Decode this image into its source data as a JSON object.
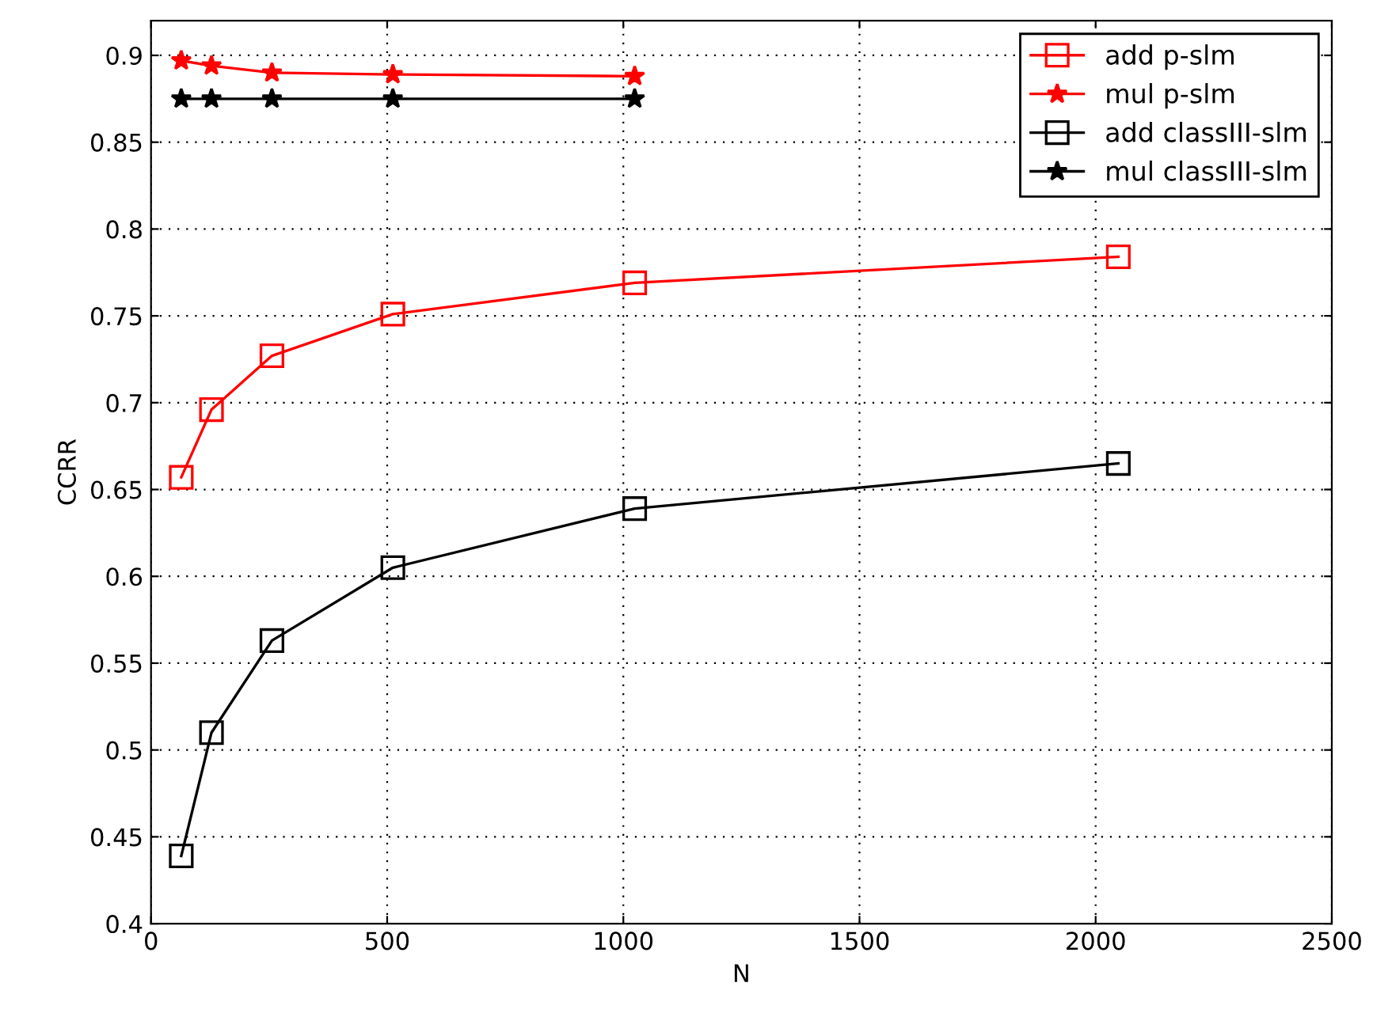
{
  "chart_data": {
    "type": "line",
    "xlabel": "N",
    "ylabel": "CCRR",
    "x": [
      64,
      128,
      256,
      512,
      1024,
      2048
    ],
    "series": [
      {
        "name": "add p-slm",
        "color": "#ff0000",
        "marker": "square",
        "values": [
          0.657,
          0.696,
          0.727,
          0.751,
          0.769,
          0.784
        ]
      },
      {
        "name": "mul p-slm",
        "color": "#ff0000",
        "marker": "star",
        "values": [
          0.897,
          0.894,
          0.89,
          0.889,
          0.888,
          null
        ]
      },
      {
        "name": "add classIII-slm",
        "color": "#000000",
        "marker": "square",
        "values": [
          0.439,
          0.51,
          0.563,
          0.605,
          0.639,
          0.665
        ]
      },
      {
        "name": "mul classIII-slm",
        "color": "#000000",
        "marker": "star",
        "values": [
          0.875,
          0.875,
          0.875,
          0.875,
          0.875,
          null
        ]
      }
    ],
    "xlim": [
      0,
      2500
    ],
    "xticks": [
      0,
      500,
      1000,
      1500,
      2000,
      2500
    ],
    "ylim": [
      0.4,
      0.92
    ],
    "yticks": [
      0.4,
      0.45,
      0.5,
      0.55,
      0.6,
      0.65,
      0.7,
      0.75,
      0.8,
      0.85,
      0.9
    ],
    "grid": true,
    "legend": "top right",
    "line_style": "solid"
  }
}
